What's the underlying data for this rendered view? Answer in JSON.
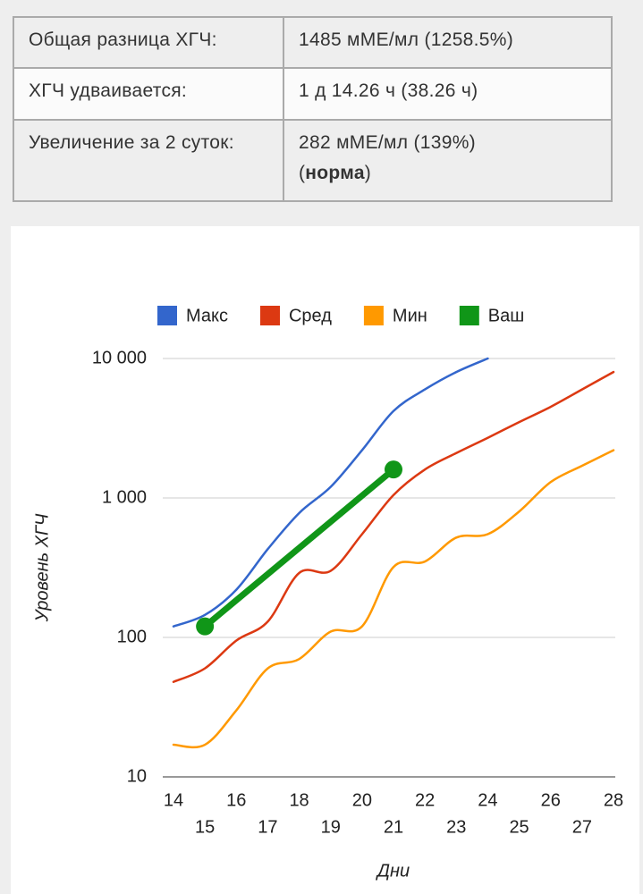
{
  "table": {
    "rows": [
      [
        "Общая разница ХГЧ:",
        "1485 мМЕ/мл (1258.5%)"
      ],
      [
        "ХГЧ удваивается:",
        "1 д 14.26 ч (38.26 ч)"
      ],
      [
        "Увеличение за 2 суток:",
        {
          "text": "282 мМЕ/мл (139%)",
          "open": "(",
          "status": "норма",
          "close": ")"
        }
      ]
    ]
  },
  "chart_data": {
    "type": "line",
    "y_label": "Уровень ХГЧ",
    "x_label": "Дни",
    "log_scale": true,
    "grid": true,
    "legend": "top",
    "x": [
      14,
      15,
      16,
      17,
      18,
      19,
      20,
      21,
      22,
      23,
      24,
      25,
      26,
      27,
      28
    ],
    "xlim": [
      14,
      28
    ],
    "xticks": [
      14,
      15,
      16,
      17,
      18,
      19,
      20,
      21,
      22,
      23,
      24,
      25,
      26,
      27,
      28
    ],
    "ylim": [
      10,
      10000
    ],
    "yticks": [
      10,
      100,
      {
        "value": 1000,
        "label": "1 000"
      },
      {
        "value": 10000,
        "label": "10 000"
      }
    ],
    "series": [
      {
        "name": "Макс",
        "color": "#3366cc",
        "values": [
          120,
          145,
          220,
          430,
          780,
          1200,
          2200,
          4200,
          6000,
          8000,
          10000,
          null,
          null,
          null,
          null
        ]
      },
      {
        "name": "Сред",
        "color": "#dc3912",
        "values": [
          48,
          60,
          95,
          130,
          290,
          300,
          550,
          1050,
          1600,
          2100,
          2700,
          3500,
          4500,
          6000,
          8000
        ]
      },
      {
        "name": "Мин",
        "color": "#ff9900",
        "values": [
          17,
          17,
          30,
          60,
          70,
          110,
          120,
          320,
          350,
          520,
          550,
          800,
          1300,
          1700,
          2200
        ]
      },
      {
        "name": "Ваш",
        "color": "#109618",
        "x": [
          15,
          21
        ],
        "values": [
          120,
          1600
        ],
        "markers": true
      }
    ]
  }
}
